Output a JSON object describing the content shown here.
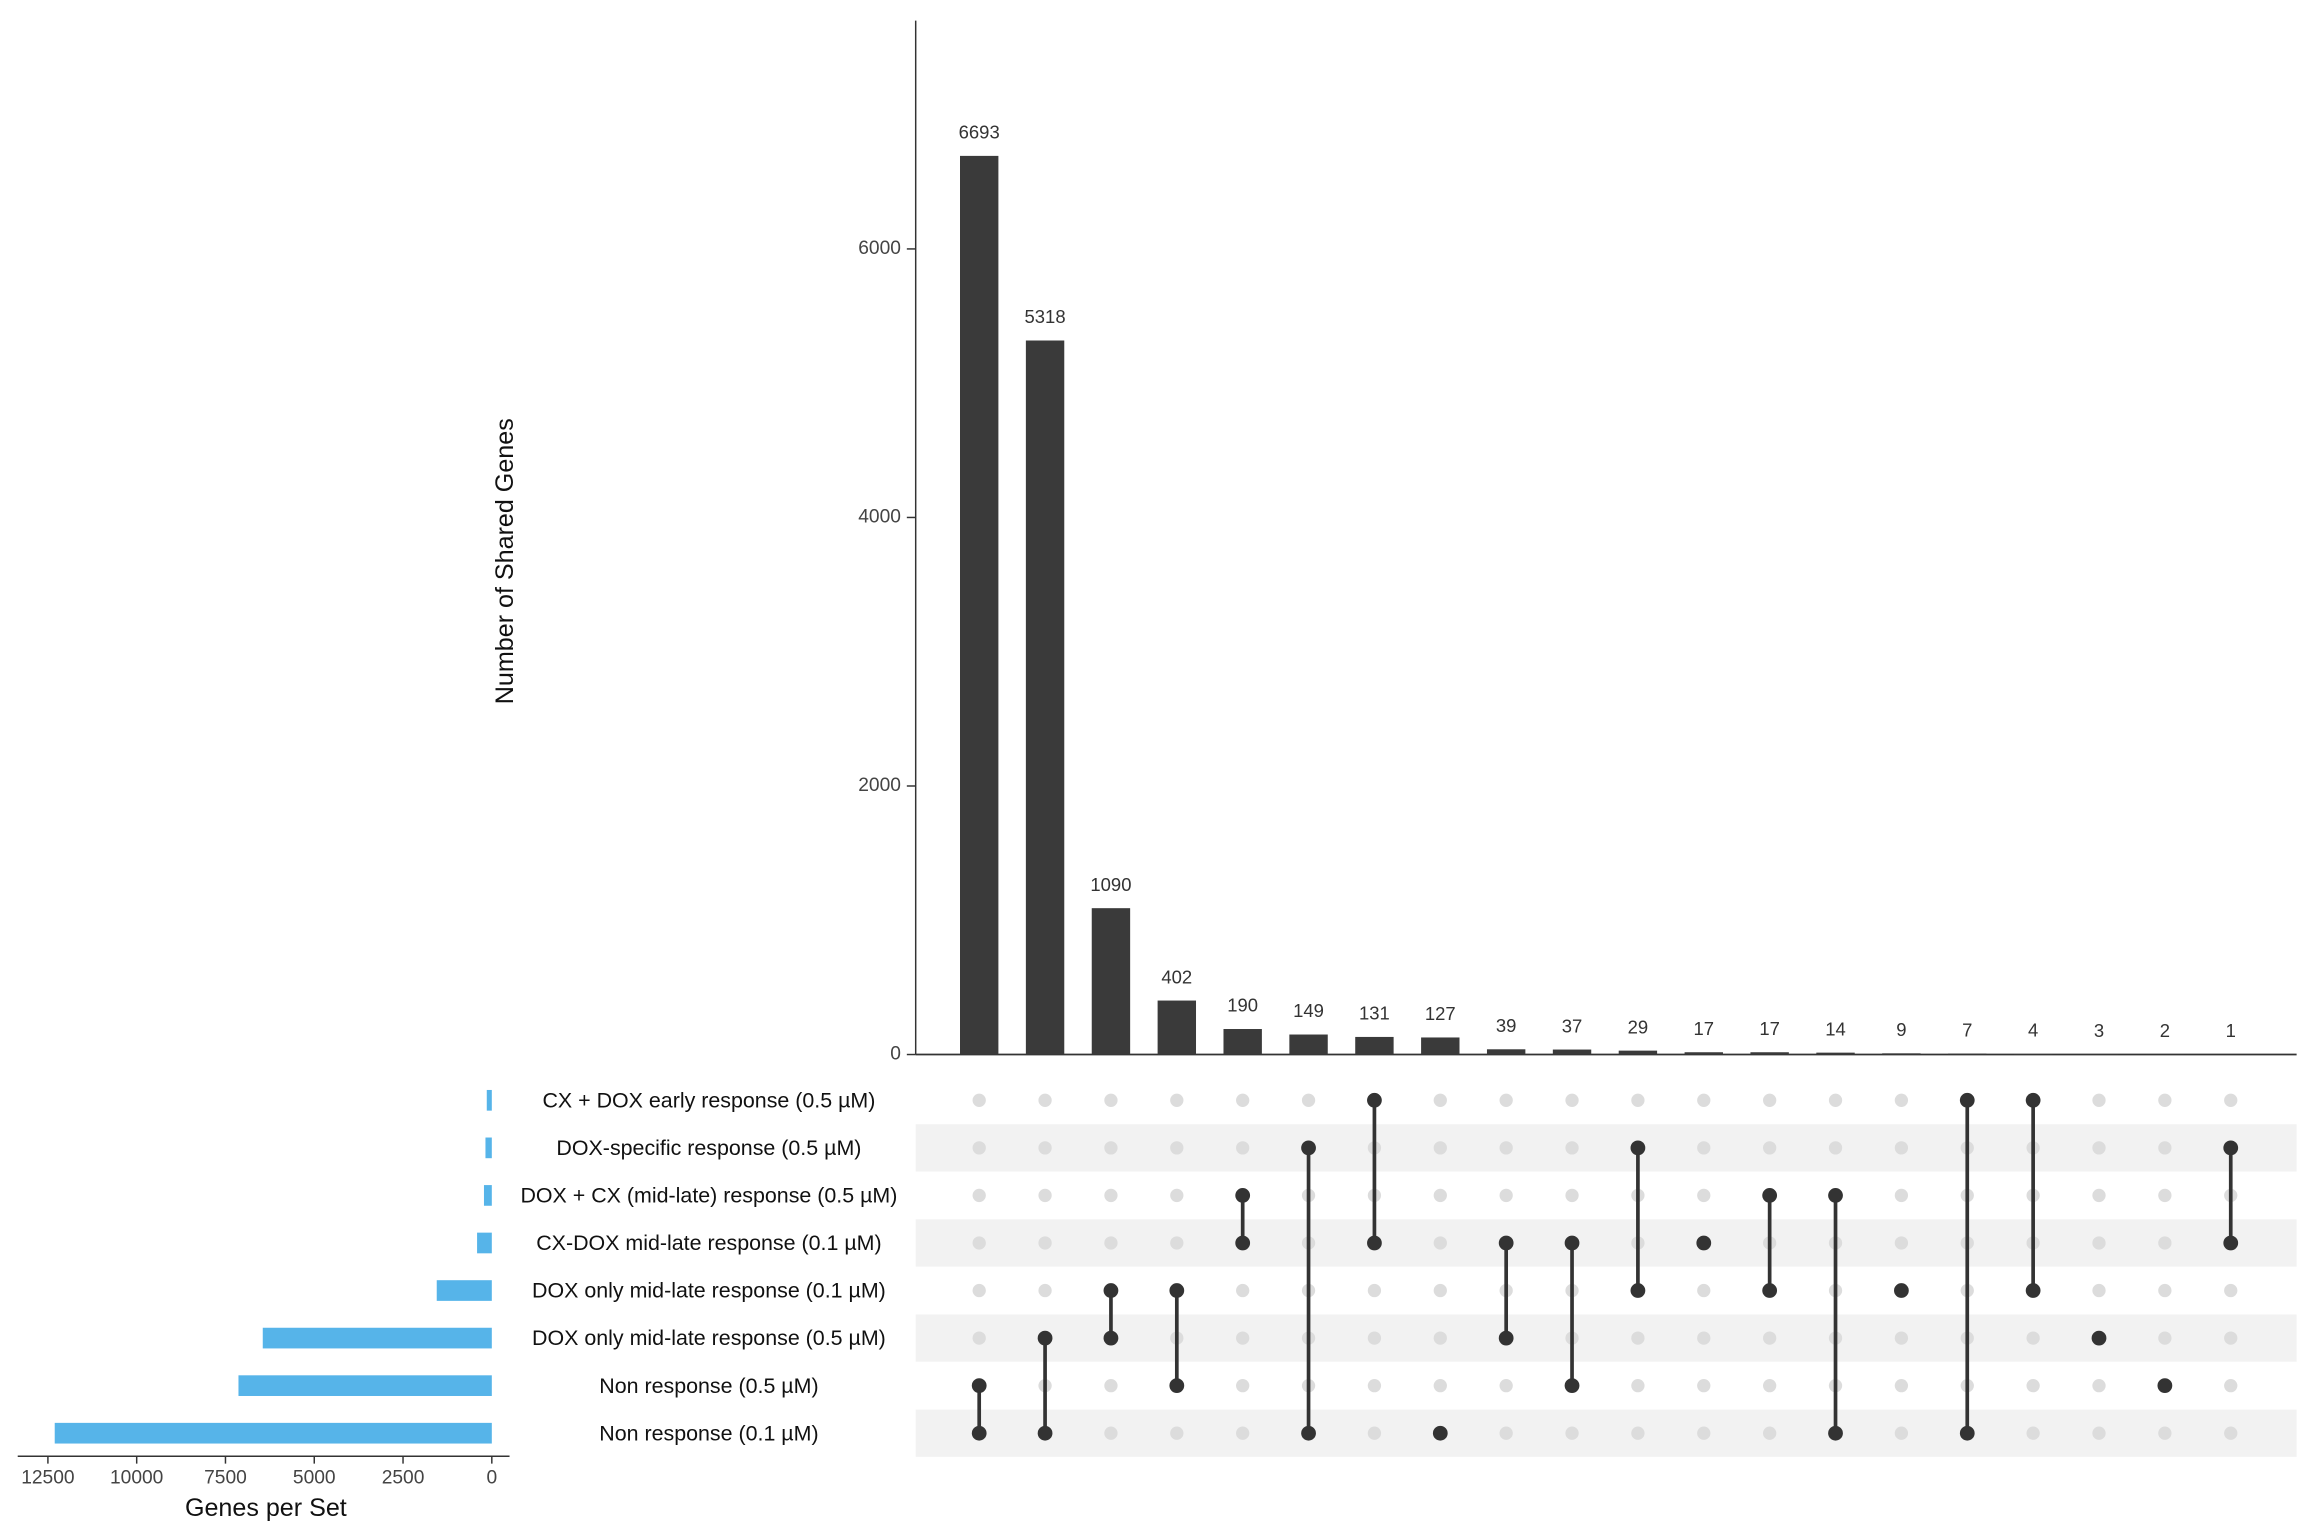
{
  "chart_data": {
    "type": "upset",
    "y_label": "Number of Shared Genes",
    "x_label": "Genes per Set",
    "bar_color": "#3a3a3a",
    "set_color": "#56b4e9",
    "sets": [
      {
        "name": "CX + DOX early response (0.5 µM)",
        "size": 142
      },
      {
        "name": "DOX-specific response (0.5 µM)",
        "size": 179
      },
      {
        "name": "DOX + CX (mid-late) response (0.5 µM)",
        "size": 221
      },
      {
        "name": "CX-DOX mid-late response (0.1 µM)",
        "size": 415
      },
      {
        "name": "DOX only mid-late response (0.1 µM)",
        "size": 1551
      },
      {
        "name": "DOX only mid-late response (0.5 µM)",
        "size": 6450
      },
      {
        "name": "Non response (0.5 µM)",
        "size": 7134
      },
      {
        "name": "Non response (0.1 µM)",
        "size": 12308
      }
    ],
    "intersections": {
      "values": [
        6693,
        5318,
        1090,
        402,
        190,
        149,
        131,
        127,
        39,
        37,
        29,
        17,
        17,
        14,
        9,
        7,
        4,
        3,
        2,
        1
      ],
      "members": [
        [
          6,
          7
        ],
        [
          5,
          7
        ],
        [
          4,
          5
        ],
        [
          4,
          6
        ],
        [
          2,
          3
        ],
        [
          1,
          7
        ],
        [
          0,
          3
        ],
        [
          7
        ],
        [
          3,
          5
        ],
        [
          3,
          6
        ],
        [
          1,
          4
        ],
        [
          3
        ],
        [
          2,
          4
        ],
        [
          2,
          7
        ],
        [
          4
        ],
        [
          0,
          7
        ],
        [
          0,
          4
        ],
        [
          5
        ],
        [
          6
        ],
        [
          1,
          3
        ]
      ]
    },
    "ylim": [
      0,
      7700
    ],
    "yticks": [
      0,
      2000,
      4000,
      6000
    ],
    "xlim": [
      0,
      13350
    ],
    "xticks": [
      12500,
      10000,
      7500,
      5000,
      2500,
      0
    ]
  }
}
